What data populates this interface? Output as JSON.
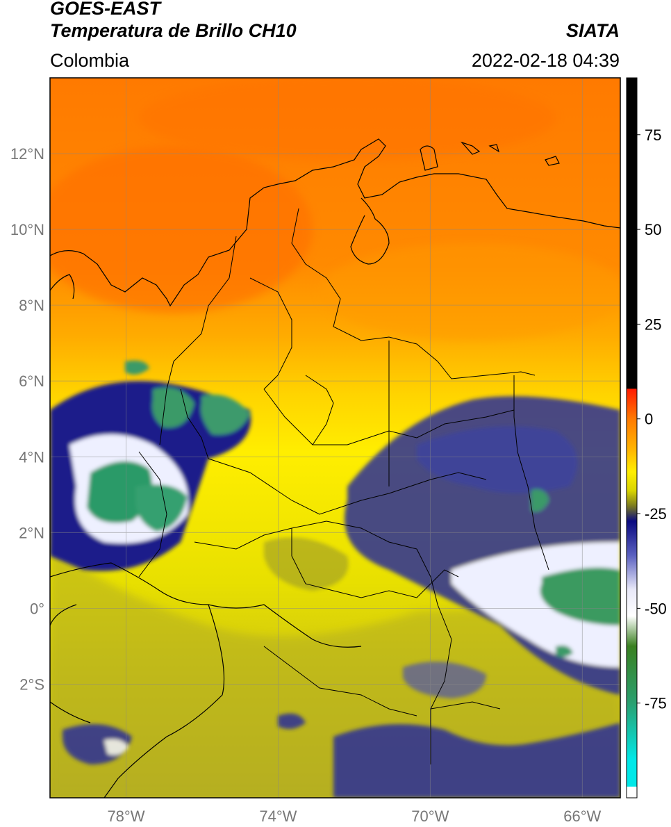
{
  "header": {
    "satellite": "GOES-EAST",
    "product": "Temperatura de Brillo CH10",
    "agency": "SIATA",
    "region": "Colombia",
    "datetime": "2022-02-18 04:39"
  },
  "map": {
    "lon_range": [
      -80,
      -65
    ],
    "lat_range": [
      -5,
      14
    ],
    "lat_ticks": [
      {
        "value": 12,
        "label": "12°N"
      },
      {
        "value": 10,
        "label": "10°N"
      },
      {
        "value": 8,
        "label": "8°N"
      },
      {
        "value": 6,
        "label": "6°N"
      },
      {
        "value": 4,
        "label": "4°N"
      },
      {
        "value": 2,
        "label": "2°N"
      },
      {
        "value": 0,
        "label": "0°"
      },
      {
        "value": -2,
        "label": "2°S"
      }
    ],
    "lon_ticks": [
      {
        "value": -78,
        "label": "78°W"
      },
      {
        "value": -74,
        "label": "74°W"
      },
      {
        "value": -70,
        "label": "70°W"
      },
      {
        "value": -66,
        "label": "66°W"
      }
    ],
    "gridlines": true
  },
  "colorbar": {
    "range": [
      -100,
      90
    ],
    "ticks": [
      {
        "value": 75,
        "label": "75"
      },
      {
        "value": 50,
        "label": "50"
      },
      {
        "value": 25,
        "label": "25"
      },
      {
        "value": 0,
        "label": "0"
      },
      {
        "value": -25,
        "label": "-25"
      },
      {
        "value": -50,
        "label": "-50"
      },
      {
        "value": -75,
        "label": "-75"
      }
    ],
    "stops": [
      {
        "value": 90,
        "color": "#000000"
      },
      {
        "value": 8,
        "color": "#000000"
      },
      {
        "value": 7.9,
        "color": "#ff1a00"
      },
      {
        "value": 0,
        "color": "#ff7a00"
      },
      {
        "value": -8,
        "color": "#ffb400"
      },
      {
        "value": -14,
        "color": "#ffee00"
      },
      {
        "value": -19,
        "color": "#d8d400"
      },
      {
        "value": -23,
        "color": "#7a7a20"
      },
      {
        "value": -27,
        "color": "#0a0a80"
      },
      {
        "value": -36,
        "color": "#5a60c0"
      },
      {
        "value": -45,
        "color": "#e8e8f8"
      },
      {
        "value": -52,
        "color": "#ffffff"
      },
      {
        "value": -60,
        "color": "#3a8020"
      },
      {
        "value": -75,
        "color": "#2aa070"
      },
      {
        "value": -90,
        "color": "#00e8e8"
      },
      {
        "value": -97,
        "color": "#00e8e8"
      },
      {
        "value": -97.1,
        "color": "#ffffff"
      },
      {
        "value": -100,
        "color": "#ffffff"
      }
    ]
  }
}
